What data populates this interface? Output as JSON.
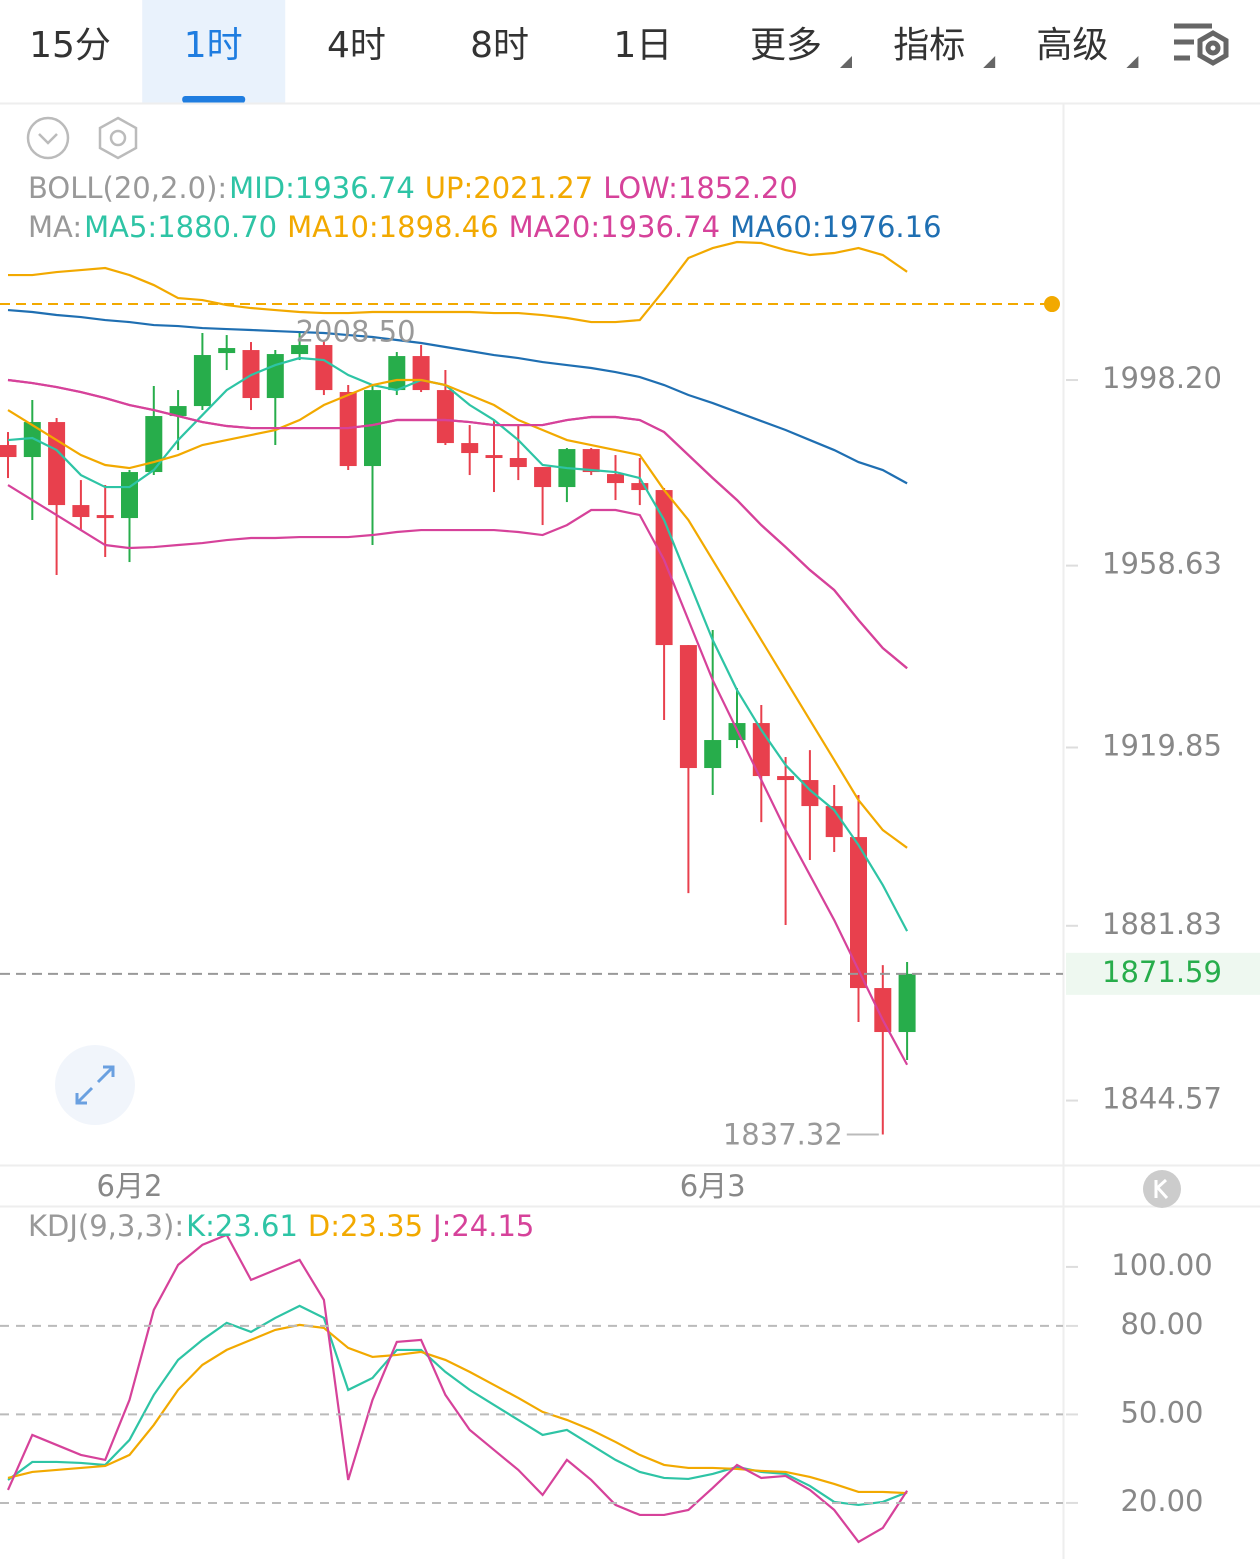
{
  "toolbar": {
    "tabs": [
      {
        "label": "15分"
      },
      {
        "label": "1时"
      },
      {
        "label": "4时"
      },
      {
        "label": "8时"
      },
      {
        "label": "1日"
      },
      {
        "label": "更多",
        "dropdown": true
      },
      {
        "label": "指标",
        "dropdown": true
      },
      {
        "label": "高级",
        "dropdown": true
      }
    ],
    "active": 1
  },
  "chart_data": [
    {
      "type": "candlestick",
      "categories": [
        null,
        null,
        null,
        null,
        null,
        "6月2",
        null,
        null,
        null,
        null,
        null,
        null,
        null,
        null,
        null,
        null,
        null,
        null,
        null,
        null,
        null,
        null,
        null,
        null,
        null,
        null,
        null,
        null,
        null,
        "6月3",
        null,
        null,
        null,
        null,
        null,
        null,
        null,
        null
      ],
      "open": [
        1984.34,
        1981.78,
        1989.24,
        1971.54,
        1969.41,
        1968.77,
        1978.58,
        1990.52,
        1992.65,
        2003.95,
        2004.59,
        1994.36,
        2003.74,
        2005.66,
        1995.64,
        1979.86,
        1996.06,
        2003.31,
        1996.06,
        1984.76,
        1982.2,
        1981.57,
        1979.65,
        1975.38,
        1983.48,
        1978.15,
        1976.23,
        1974.74,
        1941.69,
        1915.47,
        1921.44,
        1925.06,
        1913.76,
        1912.91,
        1907.36,
        1900.75,
        1868.56,
        1859.18
      ],
      "high": [
        1987.11,
        1993.93,
        1990.09,
        1976.87,
        1975.81,
        1979.01,
        1996.92,
        1996.06,
        2008.22,
        2007.79,
        2006.3,
        2004.59,
        2008.5,
        2006.73,
        1997.13,
        1997.13,
        2004.17,
        2005.66,
        2000.33,
        1988.6,
        1989.67,
        1988.6,
        1979.65,
        1983.7,
        1983.7,
        1982.2,
        1981.57,
        1975.17,
        1941.69,
        1944.89,
        1932.52,
        1928.9,
        1917.81,
        1919.3,
        1911.84,
        1909.71,
        1873.46,
        1874.1
      ],
      "low": [
        1977.3,
        1968.35,
        1956.62,
        1966.21,
        1960.46,
        1959.39,
        1977.94,
        1983.27,
        1991.8,
        2000.33,
        1991.8,
        1984.34,
        2002.46,
        1995.0,
        1979.01,
        1963.02,
        1995.0,
        1995.64,
        1984.34,
        1977.94,
        1974.32,
        1976.87,
        1967.28,
        1972.18,
        1977.94,
        1972.61,
        1971.54,
        1925.7,
        1888.81,
        1909.71,
        1919.73,
        1903.95,
        1881.99,
        1895.85,
        1897.56,
        1861.31,
        1837.32,
        1853.21
      ],
      "close": [
        1981.78,
        1989.24,
        1971.54,
        1968.99,
        1968.77,
        1978.58,
        1990.52,
        1992.65,
        2003.53,
        2005.02,
        1994.36,
        2003.74,
        2005.66,
        1996.06,
        1979.86,
        1996.06,
        2003.31,
        1996.06,
        1984.76,
        1982.63,
        1981.57,
        1979.65,
        1975.38,
        1983.48,
        1978.58,
        1976.23,
        1974.74,
        1941.69,
        1915.47,
        1921.44,
        1925.06,
        1913.76,
        1912.91,
        1907.36,
        1900.75,
        1868.56,
        1859.18,
        1871.59
      ],
      "up_color": "#27ad4b",
      "down_color": "#e8404d",
      "series": [
        {
          "name": "MID:1936.74",
          "color": "#d6429a",
          "label_color": "#2ec4a5",
          "values": [
            1998.2,
            1997.56,
            1996.7,
            1995.64,
            1994.36,
            1992.87,
            1991.8,
            1990.52,
            1989.24,
            1988.39,
            1987.96,
            1987.96,
            1987.96,
            1987.96,
            1987.96,
            1988.6,
            1989.67,
            1989.67,
            1989.67,
            1989.24,
            1988.6,
            1988.6,
            1988.6,
            1989.67,
            1990.31,
            1990.31,
            1989.67,
            1987.11,
            1982.2,
            1977.3,
            1972.61,
            1967.27,
            1962.58,
            1957.69,
            1953.42,
            1947.02,
            1941.05,
            1936.74
          ]
        },
        {
          "name": "UP:2021.27",
          "color": "#f2a900",
          "label_color": "#f2a900",
          "values": [
            2020.58,
            2020.58,
            2021.22,
            2021.65,
            2022.08,
            2020.58,
            2018.45,
            2015.68,
            2015.25,
            2014.19,
            2013.55,
            2013.12,
            2012.7,
            2012.48,
            2012.48,
            2012.7,
            2012.7,
            2012.7,
            2012.7,
            2012.7,
            2012.48,
            2012.48,
            2012.05,
            2011.42,
            2010.56,
            2010.56,
            2010.99,
            2017.39,
            2024.21,
            2026.34,
            2027.62,
            2027.41,
            2025.92,
            2024.85,
            2025.28,
            2026.34,
            2024.85,
            2021.27
          ]
        },
        {
          "name": "LOW:1852.20",
          "color": "#d6429a",
          "label_color": "#d6429a",
          "values": [
            1975.81,
            1972.61,
            1969.41,
            1966.21,
            1963.02,
            1962.38,
            1962.59,
            1963.02,
            1963.44,
            1964.08,
            1964.51,
            1964.51,
            1964.72,
            1964.72,
            1964.72,
            1965.15,
            1965.79,
            1966.21,
            1966.21,
            1966.21,
            1966.21,
            1965.79,
            1965.15,
            1967.27,
            1970.48,
            1970.48,
            1969.41,
            1959.82,
            1947.02,
            1934.23,
            1923.57,
            1912.91,
            1902.25,
            1892.65,
            1883.06,
            1872.4,
            1861.74,
            1852.2
          ]
        },
        {
          "name": "MA5:1880.70",
          "color": "#2ec4a5",
          "label_color": "#2ec4a5",
          "values": [
            1985.4,
            1985.83,
            1983.27,
            1977.94,
            1975.38,
            1975.38,
            1979.01,
            1985.4,
            1990.73,
            1996.06,
            1999.26,
            2001.39,
            2002.89,
            2002.46,
            1999.26,
            1997.13,
            1996.06,
            1998.2,
            1997.13,
            1992.87,
            1989.67,
            1985.4,
            1980.08,
            1979.43,
            1979.01,
            1978.58,
            1977.3,
            1968.35,
            1955.55,
            1942.76,
            1932.1,
            1923.57,
            1916.11,
            1910.78,
            1906.49,
            1899.05,
            1890.52,
            1880.7
          ]
        },
        {
          "name": "MA10:1898.46",
          "color": "#f2a900",
          "label_color": "#f2a900",
          "values": [
            1991.8,
            1988.6,
            1985.4,
            1982.2,
            1980.08,
            1979.43,
            1980.71,
            1982.2,
            1984.34,
            1985.4,
            1986.47,
            1987.54,
            1989.67,
            1992.87,
            1995.0,
            1997.13,
            1998.2,
            1998.2,
            1997.13,
            1995.0,
            1992.87,
            1989.67,
            1987.54,
            1985.4,
            1984.34,
            1983.27,
            1982.2,
            1974.74,
            1968.35,
            1959.82,
            1951.29,
            1942.76,
            1934.23,
            1925.7,
            1917.19,
            1908.64,
            1902.25,
            1898.46
          ]
        },
        {
          "name": "MA20:1936.74",
          "color": "#d6429a",
          "label_color": "#d6429a",
          "values": [
            1998.2,
            1997.56,
            1996.7,
            1995.64,
            1994.36,
            1992.87,
            1991.8,
            1990.52,
            1989.24,
            1988.39,
            1987.96,
            1987.96,
            1987.96,
            1987.96,
            1987.96,
            1988.6,
            1989.67,
            1989.67,
            1989.67,
            1989.24,
            1988.6,
            1988.6,
            1988.6,
            1989.67,
            1990.31,
            1990.31,
            1989.67,
            1987.11,
            1982.2,
            1977.3,
            1972.61,
            1967.27,
            1962.58,
            1957.69,
            1953.42,
            1947.02,
            1941.05,
            1936.74
          ]
        },
        {
          "name": "MA60:1976.16",
          "color": "#1f6fb2",
          "label_color": "#1f6fb2",
          "values": [
            2013.12,
            2012.7,
            2012.06,
            2011.63,
            2010.99,
            2010.56,
            2009.92,
            2009.71,
            2009.28,
            2009.07,
            2008.86,
            2008.64,
            2008.43,
            2008.22,
            2007.79,
            2007.37,
            2006.73,
            2006.09,
            2005.24,
            2004.39,
            2003.53,
            2002.89,
            2002.03,
            2001.39,
            2000.76,
            1999.9,
            1998.84,
            1997.13,
            1995.0,
            1993.29,
            1991.37,
            1989.45,
            1987.54,
            1985.4,
            1983.27,
            1980.71,
            1979.01,
            1976.16
          ]
        }
      ],
      "legend": [
        {
          "title": "BOLL(20,2.0):",
          "series": [
            0,
            1,
            2
          ]
        },
        {
          "title": "MA:",
          "series": [
            3,
            4,
            5,
            6
          ]
        }
      ],
      "ylim": [
        1830.83,
        2056.84
      ],
      "yticks": [
        {
          "value": 1998.2,
          "label": "1998.20"
        },
        1958.63,
        1919.85,
        1881.83,
        1844.57
      ],
      "grid": false,
      "alert_price": 2014.4,
      "alert_color": "#f2a900",
      "last_price": 1871.59,
      "high_label": {
        "value": 2008.5,
        "label": "2008.50"
      },
      "low_label": 1837.32
    },
    {
      "type": "line",
      "series": [
        {
          "name": "K:23.61",
          "color": "#2ec4a5",
          "values": [
            27.8,
            33.9,
            33.9,
            33.56,
            32.88,
            41.36,
            56.61,
            68.47,
            75.25,
            81.02,
            77.97,
            82.71,
            86.78,
            82.71,
            58.31,
            62.37,
            71.86,
            71.86,
            64.41,
            58.31,
            53.22,
            48.14,
            43.05,
            44.75,
            39.66,
            34.58,
            30.51,
            28.47,
            28.14,
            29.83,
            32.2,
            30.51,
            29.83,
            25.76,
            20.34,
            19.32,
            20.34,
            23.61
          ]
        },
        {
          "name": "D:23.35",
          "color": "#f2a900",
          "values": [
            28.47,
            30.51,
            31.19,
            31.86,
            32.54,
            36.27,
            46.44,
            58.31,
            66.78,
            71.86,
            75.25,
            78.64,
            80.34,
            79.32,
            72.54,
            69.49,
            70.17,
            71.19,
            68.47,
            64.41,
            60.0,
            55.59,
            50.85,
            48.14,
            44.75,
            40.68,
            36.27,
            32.88,
            31.86,
            31.86,
            31.53,
            30.85,
            30.51,
            28.81,
            26.44,
            23.73,
            23.73,
            23.35
          ]
        },
        {
          "name": "J:24.15",
          "color": "#d6429a",
          "values": [
            24.41,
            43.05,
            39.66,
            36.27,
            34.58,
            54.92,
            85.42,
            100.68,
            107.46,
            110.85,
            95.59,
            98.98,
            102.37,
            88.81,
            27.8,
            54.92,
            74.58,
            75.25,
            56.61,
            44.75,
            37.97,
            31.19,
            22.71,
            34.58,
            27.8,
            19.32,
            15.93,
            15.93,
            17.63,
            25.08,
            32.88,
            28.47,
            29.15,
            24.41,
            17.63,
            6.78,
            11.53,
            24.15
          ]
        }
      ],
      "legend": [
        {
          "title": "KDJ(9,3,3):",
          "series": [
            0,
            1,
            2
          ]
        }
      ],
      "ylim": [
        1.0,
        120.3
      ],
      "yticks": [
        {
          "value": 100,
          "label": "100.00"
        },
        {
          "value": 80,
          "label": "80.00"
        },
        {
          "value": 50,
          "label": "50.00"
        },
        {
          "value": 20,
          "label": "20.00"
        }
      ],
      "grid_ticks": [
        1,
        2,
        3
      ]
    }
  ]
}
